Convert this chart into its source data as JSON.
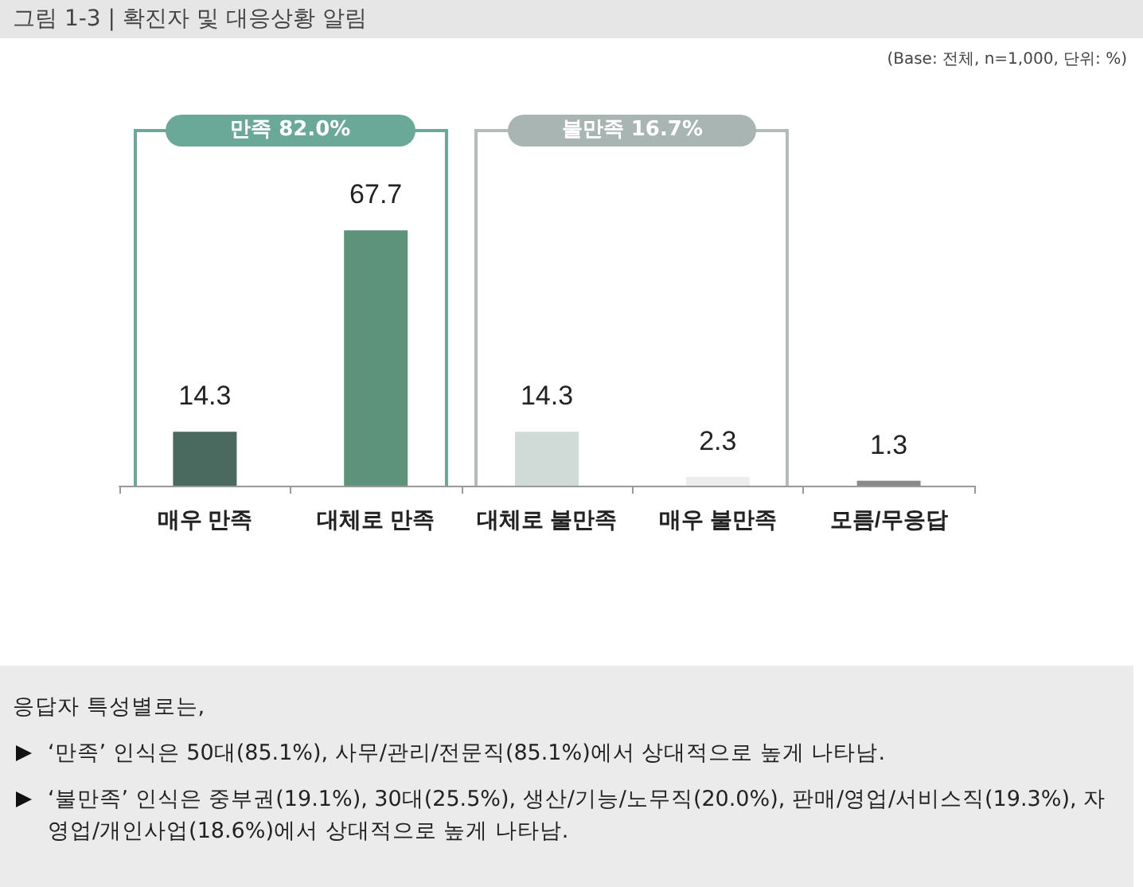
{
  "chart_data": {
    "type": "bar",
    "title": "그림 1-3  |  확진자 및 대응상황 알림",
    "subtitle": "(Base: 전체, n=1,000, 단위: %)",
    "categories": [
      "매우 만족",
      "대체로 만족",
      "대체로 불만족",
      "매우 불만족",
      "모름/무응답"
    ],
    "values": [
      14.3,
      67.7,
      14.3,
      2.3,
      1.3
    ],
    "colors": [
      "#4a6a60",
      "#5e937b",
      "#d0dbd8",
      "#eceeed",
      "#8a8a8a"
    ],
    "data_labels": true,
    "annotations": [
      "만족 82.0%",
      "불만족 16.7%",
      "응답자 특성별로는,",
      "‘만족’ 인식은 50대(85.1%), 사무/관리/전문직(85.1%)에서 상대적으로 높게 나타남.",
      "‘불만족’ 인식은 중부권(19.1%), 30대(25.5%), 생산/기능/노무직(20.0%), 판매/영업/서비스직(19.3%), 자영업/개인사업(18.6%)에서 상대적으로 높게 나타남."
    ]
  }
}
